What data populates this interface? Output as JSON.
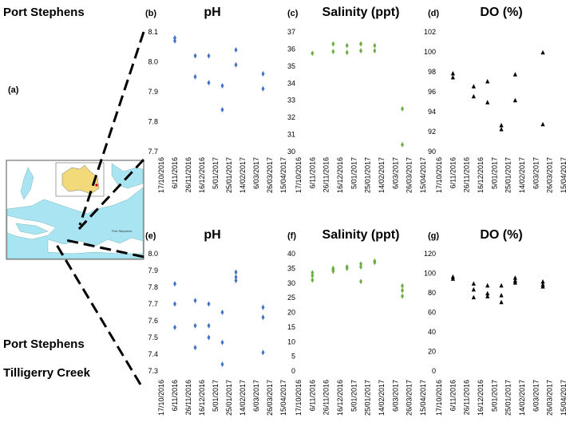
{
  "figure": {
    "site_top": "Port Stephens",
    "site_bottom_1": "Port Stephens",
    "site_bottom_2": "Tilligerry Creek",
    "map_panel_letter": "(a)",
    "map_place_label": "Port Stephens"
  },
  "colors": {
    "ph_marker": "#4472c4",
    "salinity_marker": "#70ad47",
    "do_marker": "#000000",
    "map_water": "#a8e4f2",
    "map_land": "#ffffff",
    "inset_land": "#f2d97a"
  },
  "x_tick_labels": [
    "17/10/2016",
    "6/11/2016",
    "26/11/2016",
    "16/12/2016",
    "5/01/2017",
    "25/01/2017",
    "14/02/2017",
    "6/03/2017",
    "26/03/2017",
    "15/04/2017"
  ],
  "chart_data": [
    {
      "id": "b",
      "type": "scatter",
      "panel_letter": "(b)",
      "title": "pH",
      "marker": "diamond",
      "color": "#4472c4",
      "ylim": [
        7.7,
        8.1
      ],
      "yticks": [
        "7.7",
        "7.8",
        "7.9",
        "8.0",
        "8.1"
      ],
      "xlabels": [
        "17/10/2016",
        "6/11/2016",
        "26/11/2016",
        "16/12/2016",
        "5/01/2017",
        "25/01/2017",
        "14/02/2017",
        "6/03/2017",
        "26/03/2017",
        "15/04/2017"
      ],
      "points": [
        {
          "x": 1,
          "y": 8.08
        },
        {
          "x": 1,
          "y": 8.07
        },
        {
          "x": 2.5,
          "y": 8.02
        },
        {
          "x": 2.5,
          "y": 7.95
        },
        {
          "x": 3.5,
          "y": 8.02
        },
        {
          "x": 3.5,
          "y": 7.93
        },
        {
          "x": 4.5,
          "y": 7.92
        },
        {
          "x": 4.5,
          "y": 7.84
        },
        {
          "x": 5.5,
          "y": 8.04
        },
        {
          "x": 5.5,
          "y": 7.99
        },
        {
          "x": 7.5,
          "y": 7.96
        },
        {
          "x": 7.5,
          "y": 7.91
        }
      ]
    },
    {
      "id": "c",
      "type": "scatter",
      "panel_letter": "(c)",
      "title": "Salinity (ppt)",
      "marker": "diamond",
      "color": "#70ad47",
      "ylim": [
        30,
        37
      ],
      "yticks": [
        "30",
        "31",
        "32",
        "33",
        "34",
        "35",
        "36",
        "37"
      ],
      "xlabels": [
        "17/10/2016",
        "6/11/2016",
        "26/11/2016",
        "16/12/2016",
        "5/01/2017",
        "25/01/2017",
        "14/02/2017",
        "6/03/2017",
        "26/03/2017",
        "15/04/2017"
      ],
      "points": [
        {
          "x": 1,
          "y": 35.75
        },
        {
          "x": 2.5,
          "y": 36.3
        },
        {
          "x": 2.5,
          "y": 35.85
        },
        {
          "x": 3.5,
          "y": 36.2
        },
        {
          "x": 3.5,
          "y": 35.8
        },
        {
          "x": 4.5,
          "y": 36.3
        },
        {
          "x": 4.5,
          "y": 35.9
        },
        {
          "x": 5.5,
          "y": 36.2
        },
        {
          "x": 5.5,
          "y": 35.9
        },
        {
          "x": 7.5,
          "y": 32.5
        },
        {
          "x": 7.5,
          "y": 30.4
        }
      ]
    },
    {
      "id": "d",
      "type": "scatter",
      "panel_letter": "(d)",
      "title": "DO (%)",
      "marker": "triangle",
      "color": "#000000",
      "ylim": [
        90,
        102
      ],
      "yticks": [
        "90",
        "92",
        "94",
        "96",
        "98",
        "100",
        "102"
      ],
      "xlabels": [
        "17/10/2016",
        "6/11/2016",
        "26/11/2016",
        "16/12/2016",
        "5/01/2017",
        "25/01/2017",
        "14/02/2017",
        "6/03/2017",
        "26/03/2017",
        "15/04/2017"
      ],
      "points": [
        {
          "x": 1,
          "y": 97.8
        },
        {
          "x": 1,
          "y": 97.4
        },
        {
          "x": 2.5,
          "y": 96.5
        },
        {
          "x": 2.5,
          "y": 95.5
        },
        {
          "x": 3.5,
          "y": 97.0
        },
        {
          "x": 3.5,
          "y": 94.9
        },
        {
          "x": 4.5,
          "y": 92.6
        },
        {
          "x": 4.5,
          "y": 92.2
        },
        {
          "x": 5.5,
          "y": 97.7
        },
        {
          "x": 5.5,
          "y": 95.1
        },
        {
          "x": 7.5,
          "y": 99.9
        },
        {
          "x": 7.5,
          "y": 92.7
        }
      ]
    },
    {
      "id": "e",
      "type": "scatter",
      "panel_letter": "(e)",
      "title": "pH",
      "marker": "diamond",
      "color": "#4472c4",
      "ylim": [
        7.3,
        8.0
      ],
      "yticks": [
        "7.3",
        "7.4",
        "7.5",
        "7.6",
        "7.7",
        "7.8",
        "7.9",
        "8.0"
      ],
      "xlabels": [
        "17/10/2016",
        "6/11/2016",
        "26/11/2016",
        "16/12/2016",
        "5/01/2017",
        "25/01/2017",
        "14/02/2017",
        "6/03/2017",
        "26/03/2017",
        "15/04/2017"
      ],
      "points": [
        {
          "x": 1,
          "y": 7.82
        },
        {
          "x": 1,
          "y": 7.7
        },
        {
          "x": 1,
          "y": 7.56
        },
        {
          "x": 2.5,
          "y": 7.72
        },
        {
          "x": 2.5,
          "y": 7.57
        },
        {
          "x": 2.5,
          "y": 7.44
        },
        {
          "x": 3.5,
          "y": 7.7
        },
        {
          "x": 3.5,
          "y": 7.57
        },
        {
          "x": 3.5,
          "y": 7.5
        },
        {
          "x": 4.5,
          "y": 7.65
        },
        {
          "x": 4.5,
          "y": 7.47
        },
        {
          "x": 4.5,
          "y": 7.34
        },
        {
          "x": 5.5,
          "y": 7.89
        },
        {
          "x": 5.5,
          "y": 7.86
        },
        {
          "x": 5.5,
          "y": 7.84
        },
        {
          "x": 7.5,
          "y": 7.68
        },
        {
          "x": 7.5,
          "y": 7.62
        },
        {
          "x": 7.5,
          "y": 7.41
        }
      ]
    },
    {
      "id": "f",
      "type": "scatter",
      "panel_letter": "(f)",
      "title": "Salinity (ppt)",
      "marker": "diamond",
      "color": "#70ad47",
      "ylim": [
        0,
        40
      ],
      "yticks": [
        "0",
        "5",
        "10",
        "15",
        "20",
        "25",
        "30",
        "35",
        "40"
      ],
      "xlabels": [
        "17/10/2016",
        "6/11/2016",
        "26/11/2016",
        "16/12/2016",
        "5/01/2017",
        "25/01/2017",
        "14/02/2017",
        "6/03/2017",
        "26/03/2017",
        "15/04/2017"
      ],
      "points": [
        {
          "x": 1,
          "y": 33.5
        },
        {
          "x": 1,
          "y": 32.5
        },
        {
          "x": 1,
          "y": 31.0
        },
        {
          "x": 2.5,
          "y": 35.0
        },
        {
          "x": 2.5,
          "y": 34.5
        },
        {
          "x": 2.5,
          "y": 34.0
        },
        {
          "x": 3.5,
          "y": 35.5
        },
        {
          "x": 3.5,
          "y": 35.0
        },
        {
          "x": 4.5,
          "y": 36.5
        },
        {
          "x": 4.5,
          "y": 35.5
        },
        {
          "x": 4.5,
          "y": 30.5
        },
        {
          "x": 5.5,
          "y": 37.5
        },
        {
          "x": 5.5,
          "y": 37.0
        },
        {
          "x": 7.5,
          "y": 29.0
        },
        {
          "x": 7.5,
          "y": 27.5
        },
        {
          "x": 7.5,
          "y": 25.5
        }
      ]
    },
    {
      "id": "g",
      "type": "scatter",
      "panel_letter": "(g)",
      "title": "DO (%)",
      "marker": "triangle",
      "color": "#000000",
      "ylim": [
        0,
        120
      ],
      "yticks": [
        "0",
        "20",
        "40",
        "60",
        "80",
        "100",
        "120"
      ],
      "xlabels": [
        "17/10/2016",
        "6/11/2016",
        "26/11/2016",
        "16/12/2016",
        "5/01/2017",
        "25/01/2017",
        "14/02/2017",
        "6/03/2017",
        "26/03/2017",
        "15/04/2017"
      ],
      "points": [
        {
          "x": 1,
          "y": 96
        },
        {
          "x": 1,
          "y": 94
        },
        {
          "x": 2.5,
          "y": 89
        },
        {
          "x": 2.5,
          "y": 83
        },
        {
          "x": 2.5,
          "y": 75
        },
        {
          "x": 3.5,
          "y": 87
        },
        {
          "x": 3.5,
          "y": 79
        },
        {
          "x": 3.5,
          "y": 76
        },
        {
          "x": 4.5,
          "y": 87
        },
        {
          "x": 4.5,
          "y": 77
        },
        {
          "x": 4.5,
          "y": 70
        },
        {
          "x": 5.5,
          "y": 95
        },
        {
          "x": 5.5,
          "y": 92
        },
        {
          "x": 5.5,
          "y": 90
        },
        {
          "x": 7.5,
          "y": 91
        },
        {
          "x": 7.5,
          "y": 88
        },
        {
          "x": 7.5,
          "y": 86
        }
      ]
    }
  ]
}
